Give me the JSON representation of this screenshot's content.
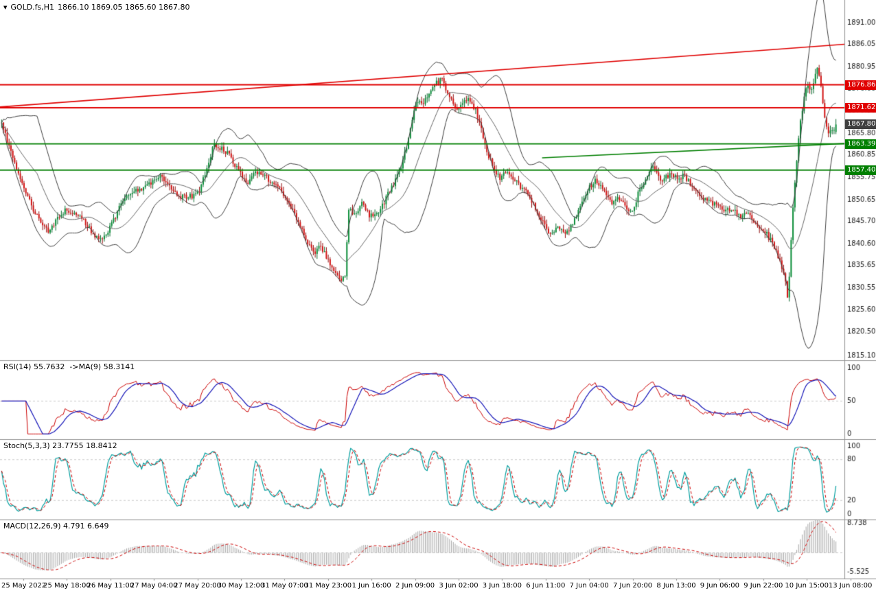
{
  "header": {
    "symbol": "GOLD.fs,H1",
    "ohlc": "1866.10 1869.05 1865.60 1867.80"
  },
  "colors": {
    "bull": "#0c8f3a",
    "bull_border": "#06662a",
    "bear": "#d41414",
    "bear_border": "#8f0d0d",
    "band": "#3d3d3d",
    "band_mid": "#666666",
    "rsi": "#cc0000",
    "rsi_ma": "#1414b8",
    "stoch_k": "#009e9e",
    "stoch_d": "#cc0000",
    "macd_hist": "#a6a6a6",
    "macd_signal": "#cc0000",
    "axis_text": "#1a1a1a",
    "separator": "#909090",
    "guide": "#c9c9c9",
    "tag_current": "#3f3f3f"
  },
  "chart_data": {
    "type": "candlestick",
    "title": "GOLD.fs,H1",
    "symbol": "GOLD.fs",
    "timeframe": "H1",
    "current_ohlc": {
      "open": 1866.1,
      "high": 1869.05,
      "low": 1865.6,
      "close": 1867.8
    },
    "candle_count": 448,
    "noise": {
      "seed": 12,
      "body": 0.65,
      "wick": 1.05
    },
    "price_axis": {
      "top": 1896.2,
      "bottom": 1814.0,
      "ticks": [
        "1891.00",
        "1886.05",
        "1880.95",
        "1876.00",
        "1870.90",
        "1865.80",
        "1860.85",
        "1855.75",
        "1850.65",
        "1845.70",
        "1840.60",
        "1835.65",
        "1830.55",
        "1825.60",
        "1820.50",
        "1815.10"
      ]
    },
    "levels": [
      {
        "label": "1876.86",
        "price": 1876.86,
        "color": "#e00000"
      },
      {
        "label": "1871.62",
        "price": 1871.62,
        "color": "#e00000"
      },
      {
        "label": "1863.39",
        "price": 1863.39,
        "color": "#007f00"
      },
      {
        "label": "1857.40",
        "price": 1857.4,
        "color": "#007f00"
      }
    ],
    "current_price_tag": {
      "label": "1867.80",
      "price": 1867.8
    },
    "trendlines": [
      {
        "from": [
          0.0,
          1871.8
        ],
        "to": [
          1.0,
          1886.1
        ],
        "color": "#e00000"
      },
      {
        "from": [
          0.642,
          1860.2
        ],
        "to": [
          1.0,
          1863.45
        ],
        "color": "#007f00"
      }
    ],
    "bollinger": {
      "period": 20,
      "deviation": 2
    },
    "close_path": [
      [
        0.0,
        1868.5
      ],
      [
        0.008,
        1863.5
      ],
      [
        0.018,
        1858.0
      ],
      [
        0.028,
        1853.0
      ],
      [
        0.038,
        1848.5
      ],
      [
        0.05,
        1844.5
      ],
      [
        0.058,
        1843.2
      ],
      [
        0.068,
        1847.0
      ],
      [
        0.078,
        1848.5
      ],
      [
        0.09,
        1847.0
      ],
      [
        0.1,
        1845.5
      ],
      [
        0.112,
        1842.5
      ],
      [
        0.12,
        1841.2
      ],
      [
        0.132,
        1845.0
      ],
      [
        0.142,
        1849.5
      ],
      [
        0.152,
        1852.0
      ],
      [
        0.165,
        1853.0
      ],
      [
        0.178,
        1854.5
      ],
      [
        0.19,
        1856.0
      ],
      [
        0.2,
        1854.0
      ],
      [
        0.215,
        1851.2
      ],
      [
        0.228,
        1851.5
      ],
      [
        0.238,
        1853.0
      ],
      [
        0.247,
        1858.5
      ],
      [
        0.254,
        1863.3
      ],
      [
        0.262,
        1862.5
      ],
      [
        0.272,
        1861.0
      ],
      [
        0.283,
        1857.5
      ],
      [
        0.293,
        1854.2
      ],
      [
        0.302,
        1856.5
      ],
      [
        0.312,
        1856.8
      ],
      [
        0.322,
        1855.0
      ],
      [
        0.332,
        1853.2
      ],
      [
        0.342,
        1850.5
      ],
      [
        0.352,
        1847.0
      ],
      [
        0.36,
        1843.5
      ],
      [
        0.368,
        1840.5
      ],
      [
        0.375,
        1838.5
      ],
      [
        0.383,
        1840.0
      ],
      [
        0.392,
        1836.5
      ],
      [
        0.4,
        1834.2
      ],
      [
        0.408,
        1832.6
      ],
      [
        0.412,
        1833.5
      ],
      [
        0.4155,
        1848.5
      ],
      [
        0.423,
        1847.0
      ],
      [
        0.432,
        1849.8
      ],
      [
        0.442,
        1846.8
      ],
      [
        0.452,
        1847.8
      ],
      [
        0.462,
        1851.5
      ],
      [
        0.472,
        1855.0
      ],
      [
        0.48,
        1859.0
      ],
      [
        0.487,
        1864.0
      ],
      [
        0.493,
        1869.5
      ],
      [
        0.498,
        1873.5
      ],
      [
        0.507,
        1873.0
      ],
      [
        0.514,
        1875.8
      ],
      [
        0.521,
        1877.2
      ],
      [
        0.528,
        1878.0
      ],
      [
        0.536,
        1874.5
      ],
      [
        0.544,
        1871.0
      ],
      [
        0.552,
        1872.8
      ],
      [
        0.56,
        1873.5
      ],
      [
        0.568,
        1871.0
      ],
      [
        0.575,
        1867.0
      ],
      [
        0.582,
        1861.5
      ],
      [
        0.59,
        1857.5
      ],
      [
        0.598,
        1855.3
      ],
      [
        0.606,
        1857.5
      ],
      [
        0.614,
        1855.2
      ],
      [
        0.622,
        1853.6
      ],
      [
        0.631,
        1851.8
      ],
      [
        0.64,
        1848.5
      ],
      [
        0.65,
        1845.0
      ],
      [
        0.659,
        1842.6
      ],
      [
        0.668,
        1844.3
      ],
      [
        0.677,
        1843.0
      ],
      [
        0.686,
        1845.5
      ],
      [
        0.695,
        1849.5
      ],
      [
        0.704,
        1853.5
      ],
      [
        0.712,
        1855.2
      ],
      [
        0.721,
        1853.2
      ],
      [
        0.73,
        1849.8
      ],
      [
        0.739,
        1851.5
      ],
      [
        0.748,
        1849.0
      ],
      [
        0.756,
        1848.0
      ],
      [
        0.764,
        1852.5
      ],
      [
        0.773,
        1856.0
      ],
      [
        0.782,
        1858.3
      ],
      [
        0.791,
        1855.2
      ],
      [
        0.8,
        1856.5
      ],
      [
        0.809,
        1855.6
      ],
      [
        0.818,
        1856.0
      ],
      [
        0.827,
        1853.8
      ],
      [
        0.836,
        1852.2
      ],
      [
        0.846,
        1850.2
      ],
      [
        0.856,
        1849.6
      ],
      [
        0.866,
        1848.2
      ],
      [
        0.876,
        1848.6
      ],
      [
        0.886,
        1846.8
      ],
      [
        0.895,
        1847.6
      ],
      [
        0.904,
        1845.2
      ],
      [
        0.913,
        1843.8
      ],
      [
        0.922,
        1841.4
      ],
      [
        0.93,
        1838.2
      ],
      [
        0.938,
        1833.5
      ],
      [
        0.9425,
        1827.5
      ],
      [
        0.946,
        1840.0
      ],
      [
        0.95,
        1853.0
      ],
      [
        0.954,
        1862.0
      ],
      [
        0.958,
        1869.0
      ],
      [
        0.962,
        1874.5
      ],
      [
        0.966,
        1876.8
      ],
      [
        0.97,
        1875.6
      ],
      [
        0.974,
        1878.3
      ],
      [
        0.978,
        1880.6
      ],
      [
        0.981,
        1878.8
      ],
      [
        0.9845,
        1872.0
      ],
      [
        0.988,
        1866.8
      ],
      [
        0.993,
        1865.9
      ],
      [
        1.0,
        1867.8
      ]
    ],
    "indicators": {
      "rsi": {
        "label": "RSI(14) 55.7632  ->MA(9) 58.3141",
        "period": 14,
        "ma_period": 9,
        "current": 55.7632,
        "current_ma": 58.3141,
        "axis_ticks": [
          "100",
          "50",
          "0"
        ],
        "guides": [
          50
        ],
        "range": [
          -8,
          112
        ]
      },
      "stoch": {
        "label": "Stoch(5,3,3) 23.7755 18.8412",
        "k": 5,
        "slowing": 3,
        "d": 3,
        "current_k": 23.7755,
        "current_d": 18.8412,
        "axis_ticks": [
          "100",
          "80",
          "20",
          "0"
        ],
        "guides": [
          80,
          20
        ],
        "range": [
          -8,
          110
        ]
      },
      "macd": {
        "label": "MACD(12,26,9) 4.791 6.649",
        "fast": 12,
        "slow": 26,
        "signal": 9,
        "current": 4.791,
        "current_signal": 6.649,
        "axis_ticks": [
          "8.738",
          "-5.525"
        ],
        "guides": [
          0
        ],
        "range": [
          -7.53,
          9.74
        ]
      }
    },
    "time_axis": [
      "25 May 2022",
      "25 May 18:00",
      "26 May 11:00",
      "27 May 04:00",
      "27 May 20:00",
      "30 May 12:00",
      "31 May 07:00",
      "31 May 23:00",
      "1 Jun 16:00",
      "2 Jun 09:00",
      "3 Jun 02:00",
      "3 Jun 18:00",
      "6 Jun 11:00",
      "7 Jun 04:00",
      "7 Jun 20:00",
      "8 Jun 13:00",
      "9 Jun 06:00",
      "9 Jun 22:00",
      "10 Jun 15:00",
      "13 Jun 08:00"
    ]
  }
}
